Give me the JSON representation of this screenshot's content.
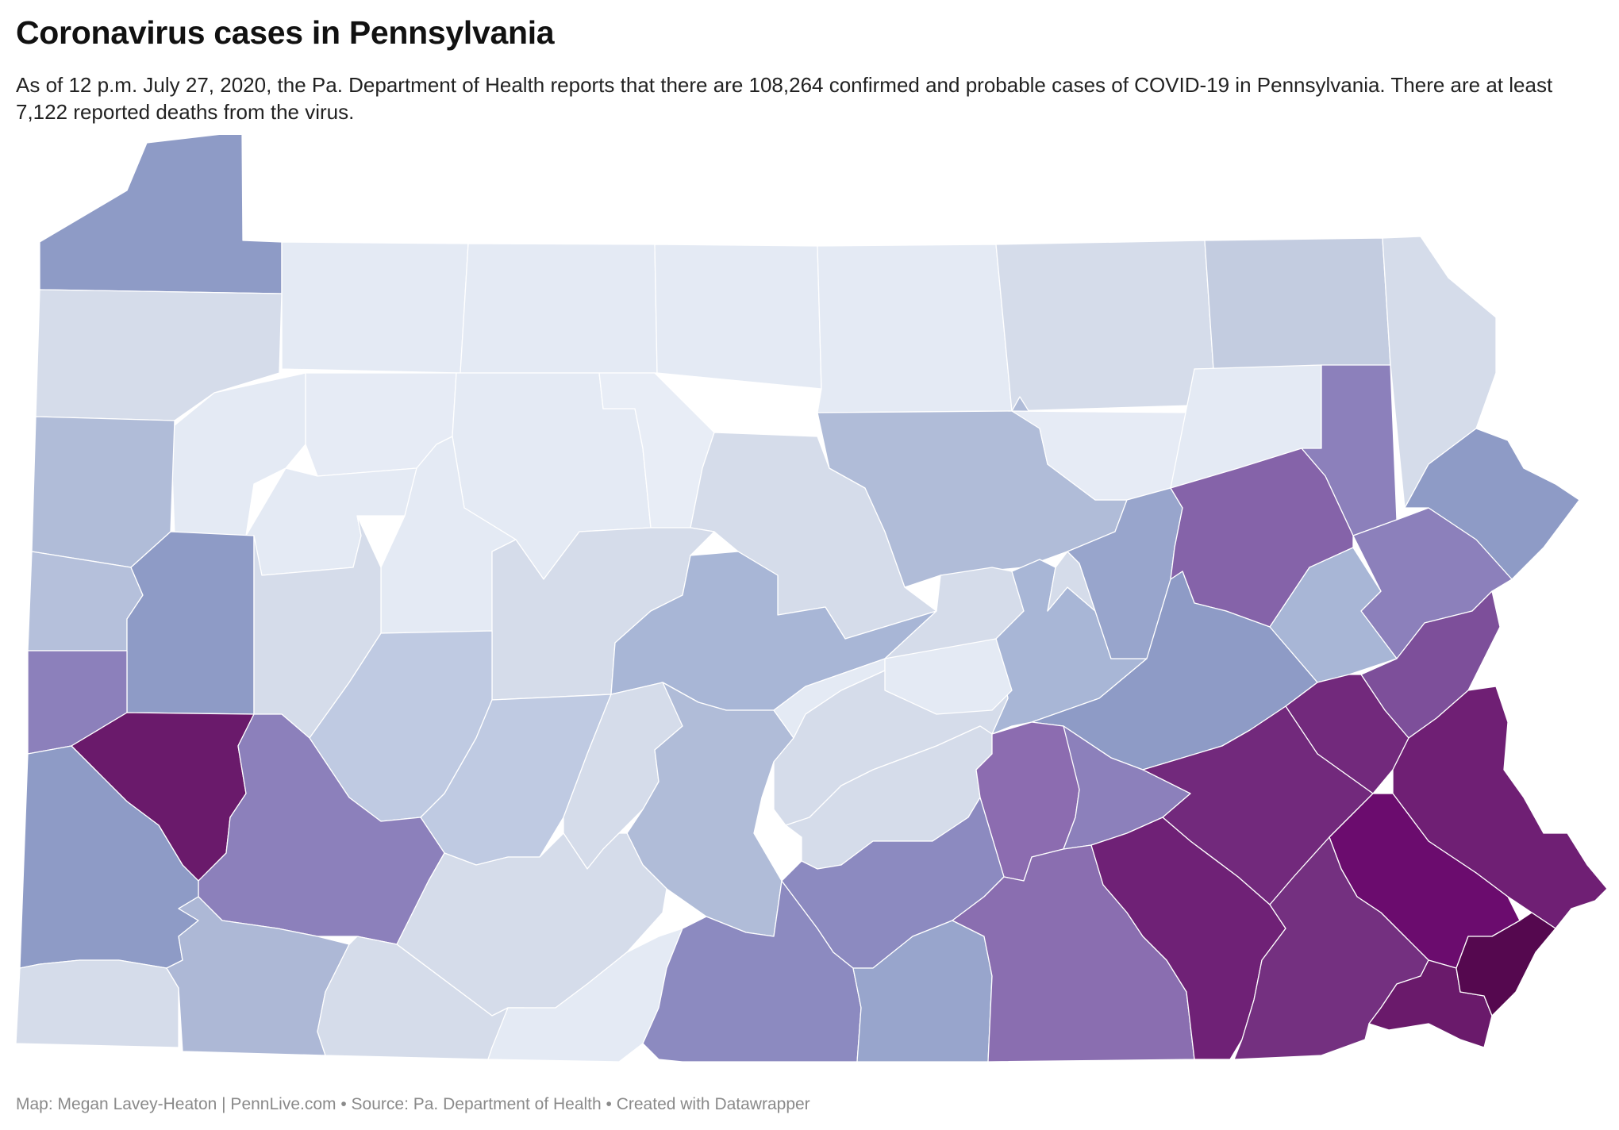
{
  "header": {
    "title": "Coronavirus cases in Pennsylvania",
    "description": "As of 12 p.m. July 27, 2020, the Pa. Department of Health reports that there are 108,264 confirmed and probable cases of COVID-19 in Pennsylvania. There are at least 7,122 reported deaths from the virus."
  },
  "footer": {
    "credit": "Map: Megan Lavey-Heaton | PennLive.com • Source: Pa. Department of Health • Created with Datawrapper"
  },
  "colors": {
    "scale": [
      "#e4eaf4",
      "#d5dcea",
      "#bfcae2",
      "#a8b6d6",
      "#8e9bc6",
      "#8c80bb",
      "#8563a9",
      "#72297c",
      "#6a1a6b",
      "#55084f"
    ]
  }
}
